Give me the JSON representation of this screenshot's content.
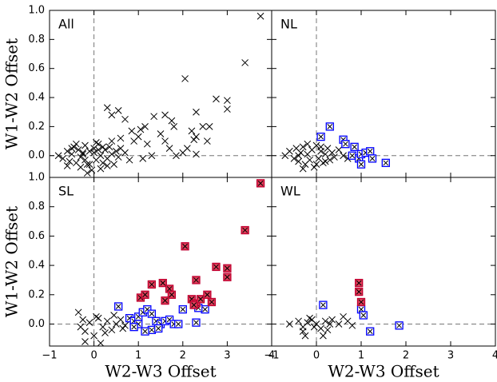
{
  "chart_data": {
    "type": "scatter",
    "xlabel": "W2-W3 Offset",
    "ylabel": "W1-W2 Offset",
    "xlim": [
      -1,
      4
    ],
    "ylim": [
      -0.15,
      1.0
    ],
    "xticks": [
      {
        "value": -1,
        "label": "−1"
      },
      0,
      1,
      2,
      3,
      4
    ],
    "yticks": [
      {
        "value": 0,
        "label": "0.0"
      },
      {
        "value": 0.2,
        "label": "0.2"
      },
      {
        "value": 0.4,
        "label": "0.4"
      },
      {
        "value": 0.6,
        "label": "0.6"
      },
      {
        "value": 0.8,
        "label": "0.8"
      },
      {
        "value": 1,
        "label": "1.0"
      }
    ],
    "vlines": [
      0
    ],
    "hlines": [
      0
    ],
    "panels": [
      {
        "label": "All",
        "series": [
          {
            "color": "#000000",
            "marker": "x",
            "x": [
              -0.8,
              -0.7,
              -0.6,
              -0.55,
              -0.5,
              -0.45,
              -0.4,
              -0.35,
              -0.3,
              -0.25,
              -0.2,
              -0.15,
              -0.1,
              -0.05,
              0.0,
              0.05,
              0.1,
              0.15,
              0.2,
              0.25,
              0.3,
              0.35,
              0.4,
              0.45,
              0.5,
              0.55,
              0.6,
              0.7,
              0.8,
              -0.6,
              -0.4,
              -0.3,
              -0.2,
              -0.1,
              0.0,
              0.1,
              0.2,
              0.3,
              -0.5,
              -0.25,
              0.15,
              0.4,
              -0.15,
              0.05,
              3.75,
              3.4,
              2.05,
              2.75,
              3.0,
              3.0,
              2.3,
              1.6,
              1.35,
              1.75,
              2.45,
              2.6,
              2.2,
              2.3,
              1.8,
              1.15,
              1.05,
              0.3,
              0.55,
              0.4,
              0.7,
              0.85,
              1.0,
              1.5,
              2.25,
              2.55,
              2.0,
              2.3,
              1.3,
              1.7,
              0.9,
              0.6,
              1.2,
              1.6,
              1.85,
              1.1,
              2.1
            ],
            "y": [
              0.0,
              -0.02,
              0.03,
              -0.04,
              0.01,
              0.06,
              -0.05,
              0.04,
              -0.08,
              0.02,
              0.07,
              -0.06,
              0.03,
              -0.1,
              0.05,
              -0.03,
              0.08,
              0.0,
              -0.05,
              0.04,
              -0.02,
              0.06,
              0.01,
              -0.06,
              0.03,
              -0.01,
              0.05,
              0.02,
              -0.03,
              -0.07,
              0.08,
              -0.01,
              -0.03,
              -0.06,
              0.02,
              0.04,
              0.06,
              -0.07,
              0.05,
              0.01,
              -0.09,
              0.1,
              -0.12,
              0.09,
              0.96,
              0.64,
              0.53,
              0.39,
              0.38,
              0.32,
              0.3,
              0.28,
              0.27,
              0.24,
              0.2,
              0.2,
              0.17,
              0.13,
              0.2,
              0.2,
              0.18,
              0.33,
              0.31,
              0.28,
              0.25,
              0.17,
              0.13,
              0.15,
              0.11,
              0.1,
              0.02,
              0.01,
              0.0,
              0.05,
              0.1,
              0.12,
              0.08,
              0.1,
              0.0,
              -0.02,
              0.05
            ]
          }
        ]
      },
      {
        "label": "NL",
        "series": [
          {
            "color": "#000000",
            "marker": "x",
            "x": [
              -0.7,
              -0.6,
              -0.5,
              -0.45,
              -0.4,
              -0.35,
              -0.3,
              -0.25,
              -0.2,
              -0.15,
              -0.1,
              -0.05,
              0.0,
              0.05,
              0.1,
              0.15,
              0.2,
              0.25,
              0.3,
              0.35,
              0.4,
              0.5,
              0.6,
              0.7,
              -0.3,
              -0.2,
              0.0,
              0.1,
              0.2,
              -0.4
            ],
            "y": [
              0.0,
              0.03,
              -0.02,
              0.05,
              -0.04,
              0.02,
              0.06,
              -0.06,
              0.01,
              -0.03,
              0.04,
              -0.08,
              0.07,
              -0.02,
              0.03,
              -0.05,
              0.01,
              0.05,
              -0.03,
              0.02,
              -0.01,
              0.04,
              0.0,
              -0.02,
              -0.09,
              0.08,
              -0.06,
              0.06,
              -0.04,
              0.0
            ]
          },
          {
            "color": "#0000ff",
            "fill": "#ffffff",
            "marker": "boxed-x",
            "x": [
              0.1,
              0.3,
              0.6,
              0.85,
              0.8,
              0.95,
              1.0,
              1.1,
              1.2,
              1.0,
              1.25,
              1.55,
              0.65
            ],
            "y": [
              0.13,
              0.2,
              0.11,
              0.06,
              0.0,
              -0.02,
              0.01,
              0.02,
              0.03,
              -0.06,
              -0.02,
              -0.05,
              0.08
            ]
          }
        ]
      },
      {
        "label": "SL",
        "series": [
          {
            "color": "#000000",
            "marker": "x",
            "x": [
              -0.35,
              -0.3,
              -0.25,
              -0.2,
              -0.1,
              0.0,
              0.1,
              0.2,
              0.3,
              0.4,
              0.5,
              0.6,
              0.7,
              0.8,
              -0.2,
              0.05,
              0.25,
              0.45,
              0.65,
              0.15
            ],
            "y": [
              0.08,
              -0.02,
              0.03,
              -0.05,
              0.01,
              -0.08,
              0.04,
              -0.02,
              0.02,
              -0.04,
              0.0,
              0.03,
              -0.01,
              0.02,
              -0.12,
              0.05,
              -0.06,
              0.06,
              -0.03,
              -0.13
            ]
          },
          {
            "color": "#0000ff",
            "fill": "#ffffff",
            "marker": "boxed-x",
            "x": [
              0.55,
              0.8,
              0.9,
              1.0,
              1.1,
              1.2,
              1.3,
              1.4,
              1.5,
              1.6,
              1.7,
              1.8,
              1.9,
              2.0,
              1.3,
              1.0,
              1.15,
              2.3,
              2.5,
              2.35,
              0.9,
              1.45
            ],
            "y": [
              0.12,
              0.04,
              0.02,
              0.05,
              0.08,
              0.1,
              0.07,
              0.02,
              0.0,
              0.02,
              0.03,
              0.0,
              0.0,
              0.1,
              -0.04,
              0.0,
              -0.05,
              0.01,
              0.1,
              0.11,
              -0.02,
              -0.03
            ]
          },
          {
            "color": "#c00030",
            "fill": "#e0405a",
            "marker": "boxed-x",
            "x": [
              1.05,
              1.15,
              1.3,
              1.55,
              1.7,
              1.75,
              1.6,
              2.05,
              2.2,
              2.3,
              2.25,
              2.3,
              2.4,
              2.55,
              2.65,
              2.75,
              3.0,
              3.0,
              3.4,
              3.75
            ],
            "y": [
              0.18,
              0.2,
              0.27,
              0.28,
              0.24,
              0.2,
              0.16,
              0.53,
              0.17,
              0.14,
              0.13,
              0.3,
              0.17,
              0.2,
              0.15,
              0.39,
              0.38,
              0.32,
              0.64,
              0.96
            ]
          }
        ]
      },
      {
        "label": "WL",
        "series": [
          {
            "color": "#000000",
            "marker": "x",
            "x": [
              -0.6,
              -0.4,
              -0.3,
              -0.2,
              -0.25,
              -0.1,
              0.0,
              0.1,
              0.2,
              0.3,
              -0.3,
              0.15,
              -0.05,
              0.25,
              0.5,
              0.6,
              0.7,
              0.8,
              -0.15,
              0.35
            ],
            "y": [
              0.0,
              0.02,
              -0.02,
              0.01,
              -0.08,
              0.03,
              0.0,
              -0.03,
              0.02,
              0.0,
              -0.05,
              -0.08,
              -0.02,
              -0.04,
              0.0,
              0.05,
              0.02,
              -0.01,
              0.04,
              0.03
            ]
          },
          {
            "color": "#0000ff",
            "fill": "#ffffff",
            "marker": "boxed-x",
            "x": [
              0.15,
              1.0,
              1.05,
              1.2,
              1.85
            ],
            "y": [
              0.13,
              0.1,
              0.06,
              -0.05,
              -0.01
            ]
          },
          {
            "color": "#c00030",
            "fill": "#e0405a",
            "marker": "boxed-x",
            "x": [
              0.95,
              0.95,
              1.0
            ],
            "y": [
              0.28,
              0.22,
              0.15
            ]
          }
        ]
      }
    ]
  }
}
